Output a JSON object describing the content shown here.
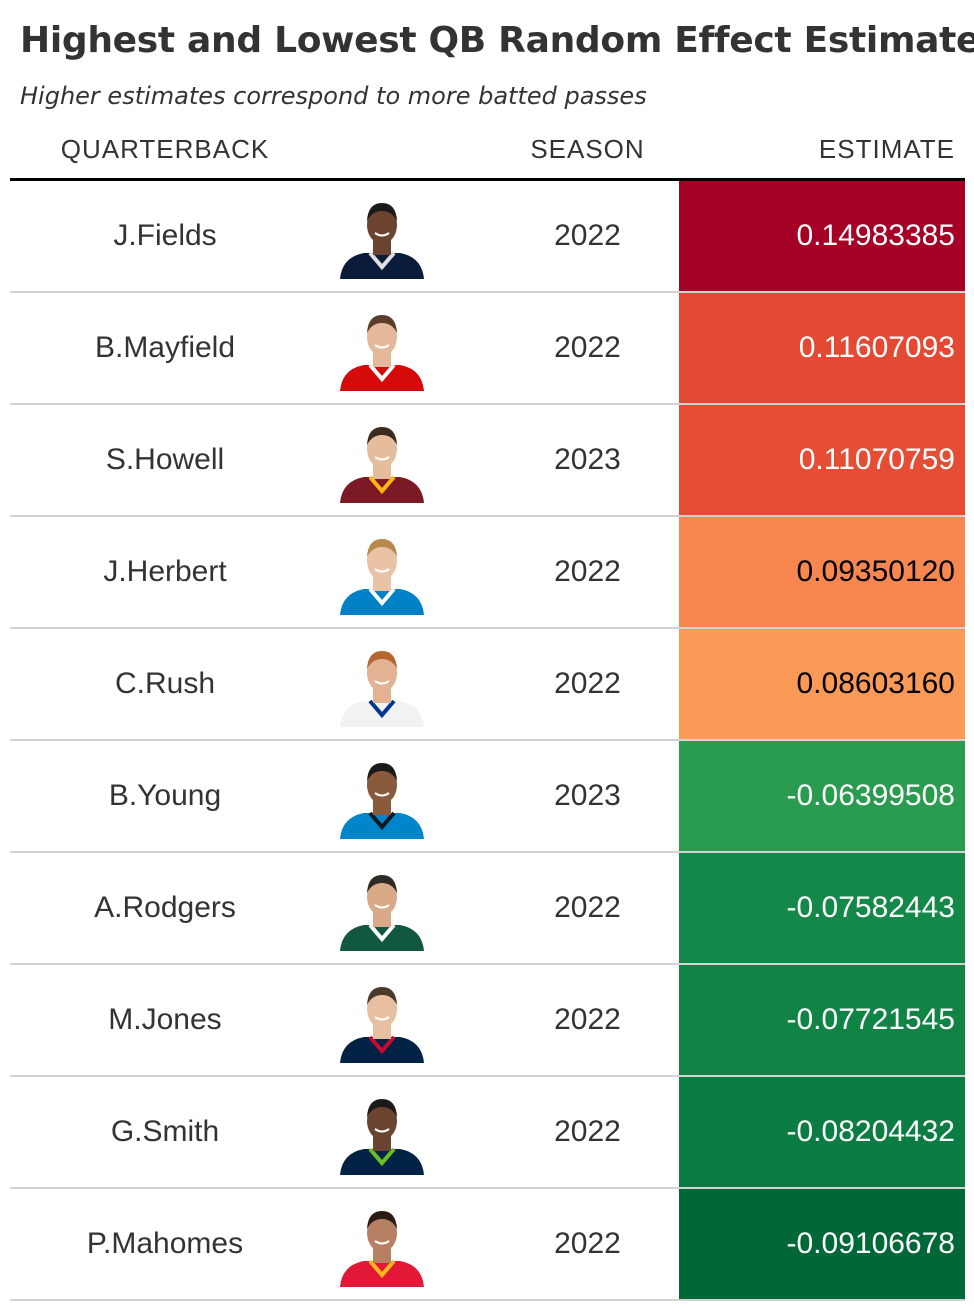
{
  "chart_data": {
    "type": "table",
    "title": "Highest and Lowest QB Random Effect Estimates",
    "subtitle": "Higher estimates correspond to more batted passes",
    "columns": [
      "QUARTERBACK",
      "SEASON",
      "ESTIMATE"
    ],
    "rows": [
      {
        "quarterback": "J.Fields",
        "season": "2022",
        "estimate": "0.14983385",
        "bg": "#a50026",
        "fg": "#ffffff",
        "skin": "#6b4330",
        "hair": "#1a1a1a",
        "jersey": "#0b1c3a",
        "trim": "#e0e0e0"
      },
      {
        "quarterback": "B.Mayfield",
        "season": "2022",
        "estimate": "0.11607093",
        "bg": "#e34933",
        "fg": "#ffffff",
        "skin": "#e4b899",
        "hair": "#5a3e2b",
        "jersey": "#d50a0a",
        "trim": "#ffffff"
      },
      {
        "quarterback": "S.Howell",
        "season": "2023",
        "estimate": "0.11070759",
        "bg": "#e54e35",
        "fg": "#ffffff",
        "skin": "#e6bd9c",
        "hair": "#3b2a1e",
        "jersey": "#7b1a25",
        "trim": "#ffb612"
      },
      {
        "quarterback": "J.Herbert",
        "season": "2022",
        "estimate": "0.09350120",
        "bg": "#f7874e",
        "fg": "#000000",
        "skin": "#eac3a6",
        "hair": "#b58a4a",
        "jersey": "#0080c6",
        "trim": "#ffffff"
      },
      {
        "quarterback": "C.Rush",
        "season": "2022",
        "estimate": "0.08603160",
        "bg": "#fa9a56",
        "fg": "#000000",
        "skin": "#e3b293",
        "hair": "#b5652e",
        "jersey": "#f2f2f2",
        "trim": "#003594"
      },
      {
        "quarterback": "B.Young",
        "season": "2023",
        "estimate": "-0.06399508",
        "bg": "#2a9c50",
        "fg": "#ffffff",
        "skin": "#8a5a3c",
        "hair": "#1a1a1a",
        "jersey": "#0085ca",
        "trim": "#101820"
      },
      {
        "quarterback": "A.Rodgers",
        "season": "2022",
        "estimate": "-0.07582443",
        "bg": "#138848",
        "fg": "#ffffff",
        "skin": "#d9a988",
        "hair": "#2e2a26",
        "jersey": "#125740",
        "trim": "#ffffff"
      },
      {
        "quarterback": "M.Jones",
        "season": "2022",
        "estimate": "-0.07721545",
        "bg": "#108345",
        "fg": "#ffffff",
        "skin": "#e9bfa2",
        "hair": "#4a3a2a",
        "jersey": "#002244",
        "trim": "#c60c30"
      },
      {
        "quarterback": "G.Smith",
        "season": "2022",
        "estimate": "-0.08204432",
        "bg": "#0c7d42",
        "fg": "#ffffff",
        "skin": "#6a4431",
        "hair": "#1a1a1a",
        "jersey": "#002244",
        "trim": "#69be28"
      },
      {
        "quarterback": "P.Mahomes",
        "season": "2022",
        "estimate": "-0.09106678",
        "bg": "#006837",
        "fg": "#ffffff",
        "skin": "#b88062",
        "hair": "#2a1c14",
        "jersey": "#e31837",
        "trim": "#ffb81c"
      }
    ]
  }
}
